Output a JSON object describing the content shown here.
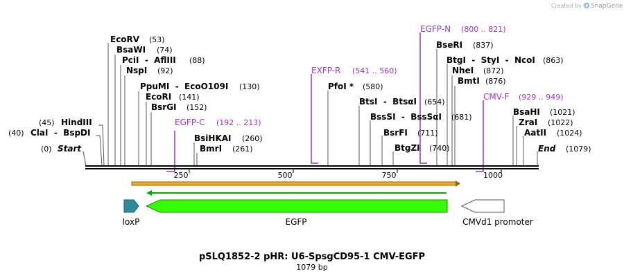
{
  "credit": {
    "prefix": "Created by",
    "brand": "SnapGene"
  },
  "title": "pSLQ1852-2 pHR: U6-SpsgCD95-1 CMV-EGFP",
  "length_label": "1079 bp",
  "ruler_ticks": [
    "250",
    "500",
    "750",
    "1000"
  ],
  "sites": [
    {
      "name": "EcoRV",
      "pos": "(53)"
    },
    {
      "name": "BsaWI",
      "pos": "(74)"
    },
    {
      "name": "PciI  -  AflIII",
      "pos": "(88)"
    },
    {
      "name": "NspI",
      "pos": "(92)"
    },
    {
      "name": "PpuMI  -  EcoO109I",
      "pos": "(130)"
    },
    {
      "name": "EcoRI",
      "pos": "(141)"
    },
    {
      "name": "BsrGI",
      "pos": "(152)"
    },
    {
      "name": "BsiHKAI",
      "pos": "(260)"
    },
    {
      "name": "BmrI",
      "pos": "(261)"
    },
    {
      "name": "PfoI *",
      "pos": "(580)"
    },
    {
      "name": "BtsI  -  BtsαI",
      "pos": "(654)"
    },
    {
      "name": "BssSI  -  BssSαI",
      "pos": "(681)"
    },
    {
      "name": "BsrFI",
      "pos": "(711)"
    },
    {
      "name": "BtgZI",
      "pos": "(740)"
    },
    {
      "name": "BseRI",
      "pos": "(837)"
    },
    {
      "name": "BtgI  -  StyI  -  NcoI",
      "pos": "(863)"
    },
    {
      "name": "NheI",
      "pos": "(872)"
    },
    {
      "name": "BmtI",
      "pos": "(876)"
    },
    {
      "name": "BsaHI",
      "pos": "(1021)"
    },
    {
      "name": "ZraI",
      "pos": "(1022)"
    },
    {
      "name": "AatII",
      "pos": "(1024)"
    },
    {
      "name": "HindIII",
      "pos": "(45)"
    },
    {
      "name": "ClaI  -  BspDI",
      "pos": "(40)"
    },
    {
      "name": "Start",
      "pos": "(0)"
    },
    {
      "name": "End",
      "pos": "(1079)"
    }
  ],
  "primers": [
    {
      "name": "EGFP-N",
      "range": "(800 .. 821)"
    },
    {
      "name": "EXFP-R",
      "range": "(541 .. 560)"
    },
    {
      "name": "CMV-F",
      "range": "(929 .. 949)"
    },
    {
      "name": "EGFP-C",
      "range": "(192 .. 213)"
    }
  ],
  "features": [
    {
      "name": "loxP",
      "color": "#2e8b9a"
    },
    {
      "name": "EGFP",
      "color": "#33ff00"
    },
    {
      "name": "CMVd1 promoter",
      "color": "#ffffff"
    }
  ],
  "colors": {
    "primer": "#9933cc",
    "orf_orange": "#f5a623",
    "orf_green": "#00aa00"
  }
}
